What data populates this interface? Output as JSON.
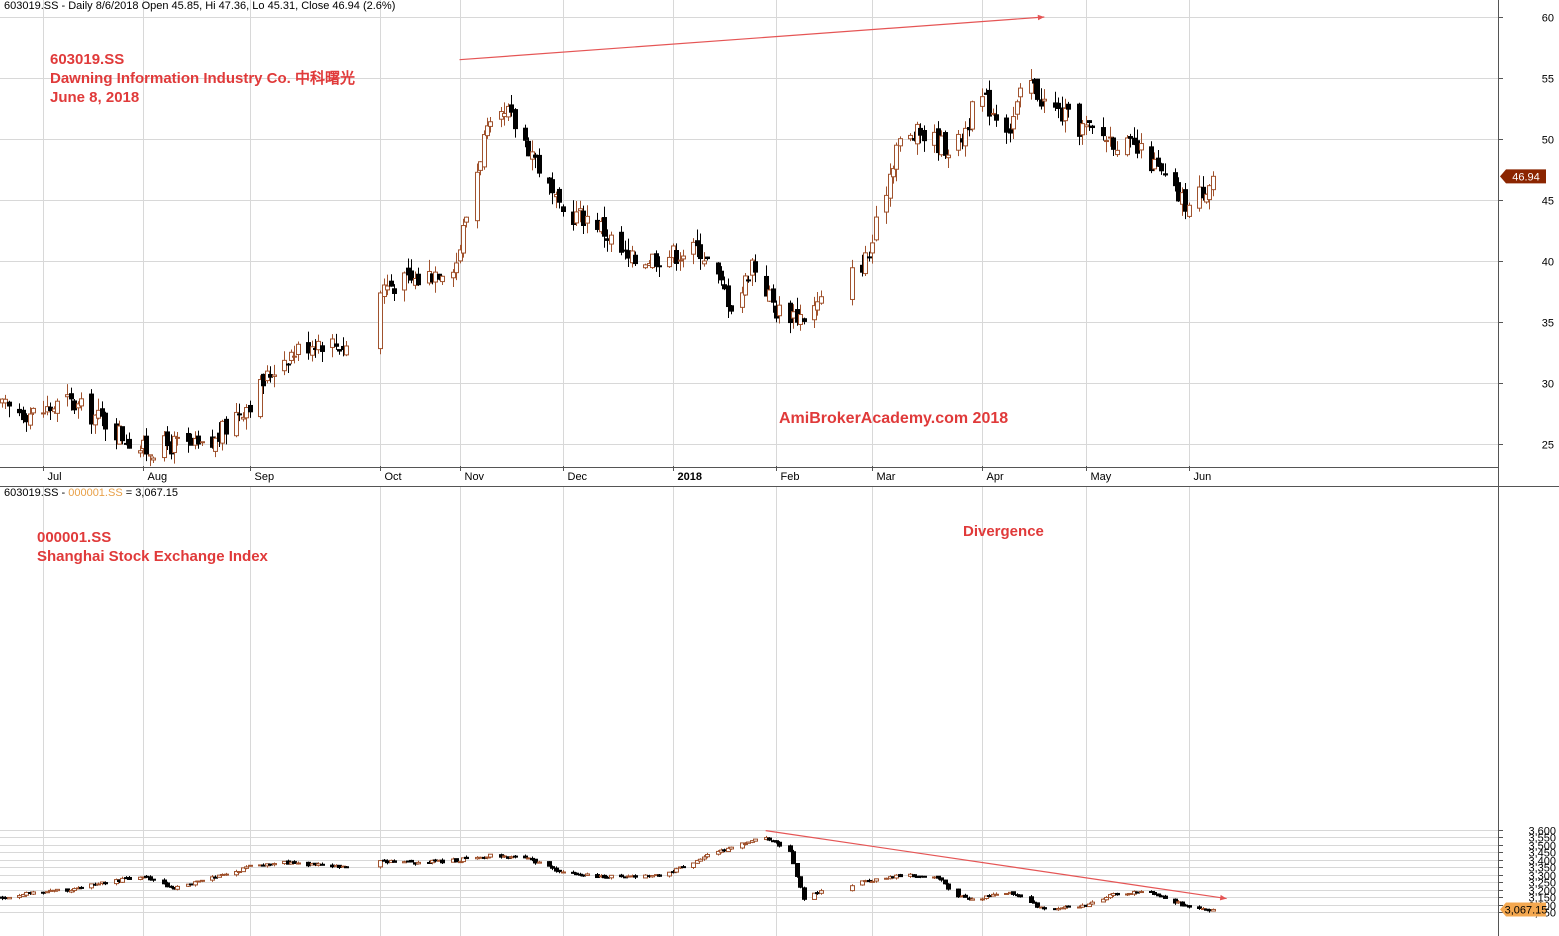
{
  "panel1": {
    "header": "603019.SS - Daily 8/6/2018 Open 45.85, Hi 47.36, Lo 45.31, Close 46.94 (2.6%)",
    "annotation": [
      "603019.SS",
      "Dawning Information Industry Co. 中科曙光",
      "June 8, 2018"
    ],
    "watermark": "AmiBrokerAcademy.com  2018",
    "last_price_label": "46.94",
    "y_ticks": [
      "25",
      "30",
      "35",
      "40",
      "45",
      "50",
      "55",
      "60"
    ]
  },
  "panel2": {
    "header_ticker": "603019.SS - ",
    "header_compare": "000001.SS",
    "header_value": " = 3,067.15",
    "annotation": [
      "000001.SS",
      "Shanghai Stock Exchange Index"
    ],
    "divergence_label": "Divergence",
    "last_price_label": "3,067.15",
    "y_ticks": [
      "3,050",
      "3,100",
      "3,150",
      "3,200",
      "3,250",
      "3,300",
      "3,350",
      "3,400",
      "3,450",
      "3,500",
      "3,550",
      "3,600"
    ]
  },
  "x_axis": {
    "labels": [
      "Jul",
      "Aug",
      "Sep",
      "Oct",
      "Nov",
      "Dec",
      "2018",
      "Feb",
      "Mar",
      "Apr",
      "May",
      "Jun"
    ]
  },
  "colors": {
    "up": "#a0522d",
    "down": "#000000",
    "trendline": "#e55555",
    "annotation": "#e03a3a",
    "price_tag_1": "#8b2500",
    "price_tag_2": "#f4a850",
    "grid": "#d8d8d8"
  },
  "chart_data": [
    {
      "type": "candlestick",
      "symbol": "603019.SS",
      "title": "Dawning Information Industry Co. 中科曙光",
      "ylim": [
        22,
        61
      ],
      "x_range": [
        "2017-06-21",
        "2018-06-08"
      ],
      "last": {
        "date": "2018-06-08",
        "open": 45.85,
        "high": 47.36,
        "low": 45.31,
        "close": 46.94,
        "change_pct": 2.6
      },
      "trendline": {
        "from": {
          "date": "2017-11-01",
          "value": 56.5
        },
        "to": {
          "date": "2018-04-20",
          "value": 60.0
        }
      },
      "closes_approx": [
        [
          "2017-06-21",
          28.0
        ],
        [
          "2017-07-01",
          27.5
        ],
        [
          "2017-07-10",
          28.5
        ],
        [
          "2017-07-20",
          27.0
        ],
        [
          "2017-08-01",
          24.5
        ],
        [
          "2017-08-10",
          25.0
        ],
        [
          "2017-08-20",
          24.5
        ],
        [
          "2017-08-28",
          27.5
        ],
        [
          "2017-09-01",
          28.5
        ],
        [
          "2017-09-10",
          32.0
        ],
        [
          "2017-09-20",
          33.5
        ],
        [
          "2017-09-30",
          33.0
        ],
        [
          "2017-10-10",
          38.0
        ],
        [
          "2017-10-20",
          38.5
        ],
        [
          "2017-10-31",
          40.0
        ],
        [
          "2017-11-08",
          50.0
        ],
        [
          "2017-11-15",
          52.0
        ],
        [
          "2017-11-22",
          49.0
        ],
        [
          "2017-11-30",
          44.0
        ],
        [
          "2017-12-10",
          43.5
        ],
        [
          "2017-12-20",
          40.0
        ],
        [
          "2017-12-31",
          40.5
        ],
        [
          "2018-01-10",
          41.0
        ],
        [
          "2018-01-20",
          36.0
        ],
        [
          "2018-01-25",
          40.0
        ],
        [
          "2018-02-01",
          36.0
        ],
        [
          "2018-02-09",
          35.5
        ],
        [
          "2018-02-20",
          38.0
        ],
        [
          "2018-02-28",
          40.5
        ],
        [
          "2018-03-08",
          49.5
        ],
        [
          "2018-03-15",
          50.5
        ],
        [
          "2018-03-25",
          49.0
        ],
        [
          "2018-04-01",
          53.5
        ],
        [
          "2018-04-10",
          51.0
        ],
        [
          "2018-04-15",
          55.0
        ],
        [
          "2018-04-20",
          53.0
        ],
        [
          "2018-04-30",
          51.0
        ],
        [
          "2018-05-10",
          50.0
        ],
        [
          "2018-05-20",
          48.5
        ],
        [
          "2018-05-28",
          45.5
        ],
        [
          "2018-06-01",
          44.5
        ],
        [
          "2018-06-08",
          46.94
        ]
      ]
    },
    {
      "type": "candlestick",
      "symbol": "000001.SS",
      "title": "Shanghai Stock Exchange Index",
      "ylim": [
        3030,
        3615
      ],
      "x_range": [
        "2017-06-21",
        "2018-06-08"
      ],
      "last": {
        "date": "2018-06-08",
        "close": 3067.15
      },
      "trendline": {
        "from": {
          "date": "2018-01-29",
          "value": 3595
        },
        "to": {
          "date": "2018-06-12",
          "value": 3140
        }
      },
      "closes_approx": [
        [
          "2017-06-21",
          3145
        ],
        [
          "2017-07-01",
          3185
        ],
        [
          "2017-07-10",
          3200
        ],
        [
          "2017-07-20",
          3240
        ],
        [
          "2017-08-01",
          3290
        ],
        [
          "2017-08-10",
          3210
        ],
        [
          "2017-08-20",
          3270
        ],
        [
          "2017-08-28",
          3320
        ],
        [
          "2017-09-01",
          3365
        ],
        [
          "2017-09-10",
          3380
        ],
        [
          "2017-09-20",
          3365
        ],
        [
          "2017-09-30",
          3345
        ],
        [
          "2017-10-10",
          3390
        ],
        [
          "2017-10-20",
          3380
        ],
        [
          "2017-10-31",
          3395
        ],
        [
          "2017-11-10",
          3430
        ],
        [
          "2017-11-20",
          3410
        ],
        [
          "2017-11-30",
          3320
        ],
        [
          "2017-12-10",
          3290
        ],
        [
          "2017-12-20",
          3290
        ],
        [
          "2017-12-31",
          3300
        ],
        [
          "2018-01-10",
          3410
        ],
        [
          "2018-01-20",
          3490
        ],
        [
          "2018-01-29",
          3550
        ],
        [
          "2018-02-05",
          3460
        ],
        [
          "2018-02-09",
          3130
        ],
        [
          "2018-02-14",
          3190
        ],
        [
          "2018-02-28",
          3260
        ],
        [
          "2018-03-10",
          3300
        ],
        [
          "2018-03-20",
          3280
        ],
        [
          "2018-03-25",
          3150
        ],
        [
          "2018-04-01",
          3140
        ],
        [
          "2018-04-10",
          3180
        ],
        [
          "2018-04-20",
          3070
        ],
        [
          "2018-04-30",
          3080
        ],
        [
          "2018-05-10",
          3170
        ],
        [
          "2018-05-20",
          3190
        ],
        [
          "2018-05-28",
          3120
        ],
        [
          "2018-06-01",
          3080
        ],
        [
          "2018-06-08",
          3067.15
        ]
      ]
    }
  ]
}
